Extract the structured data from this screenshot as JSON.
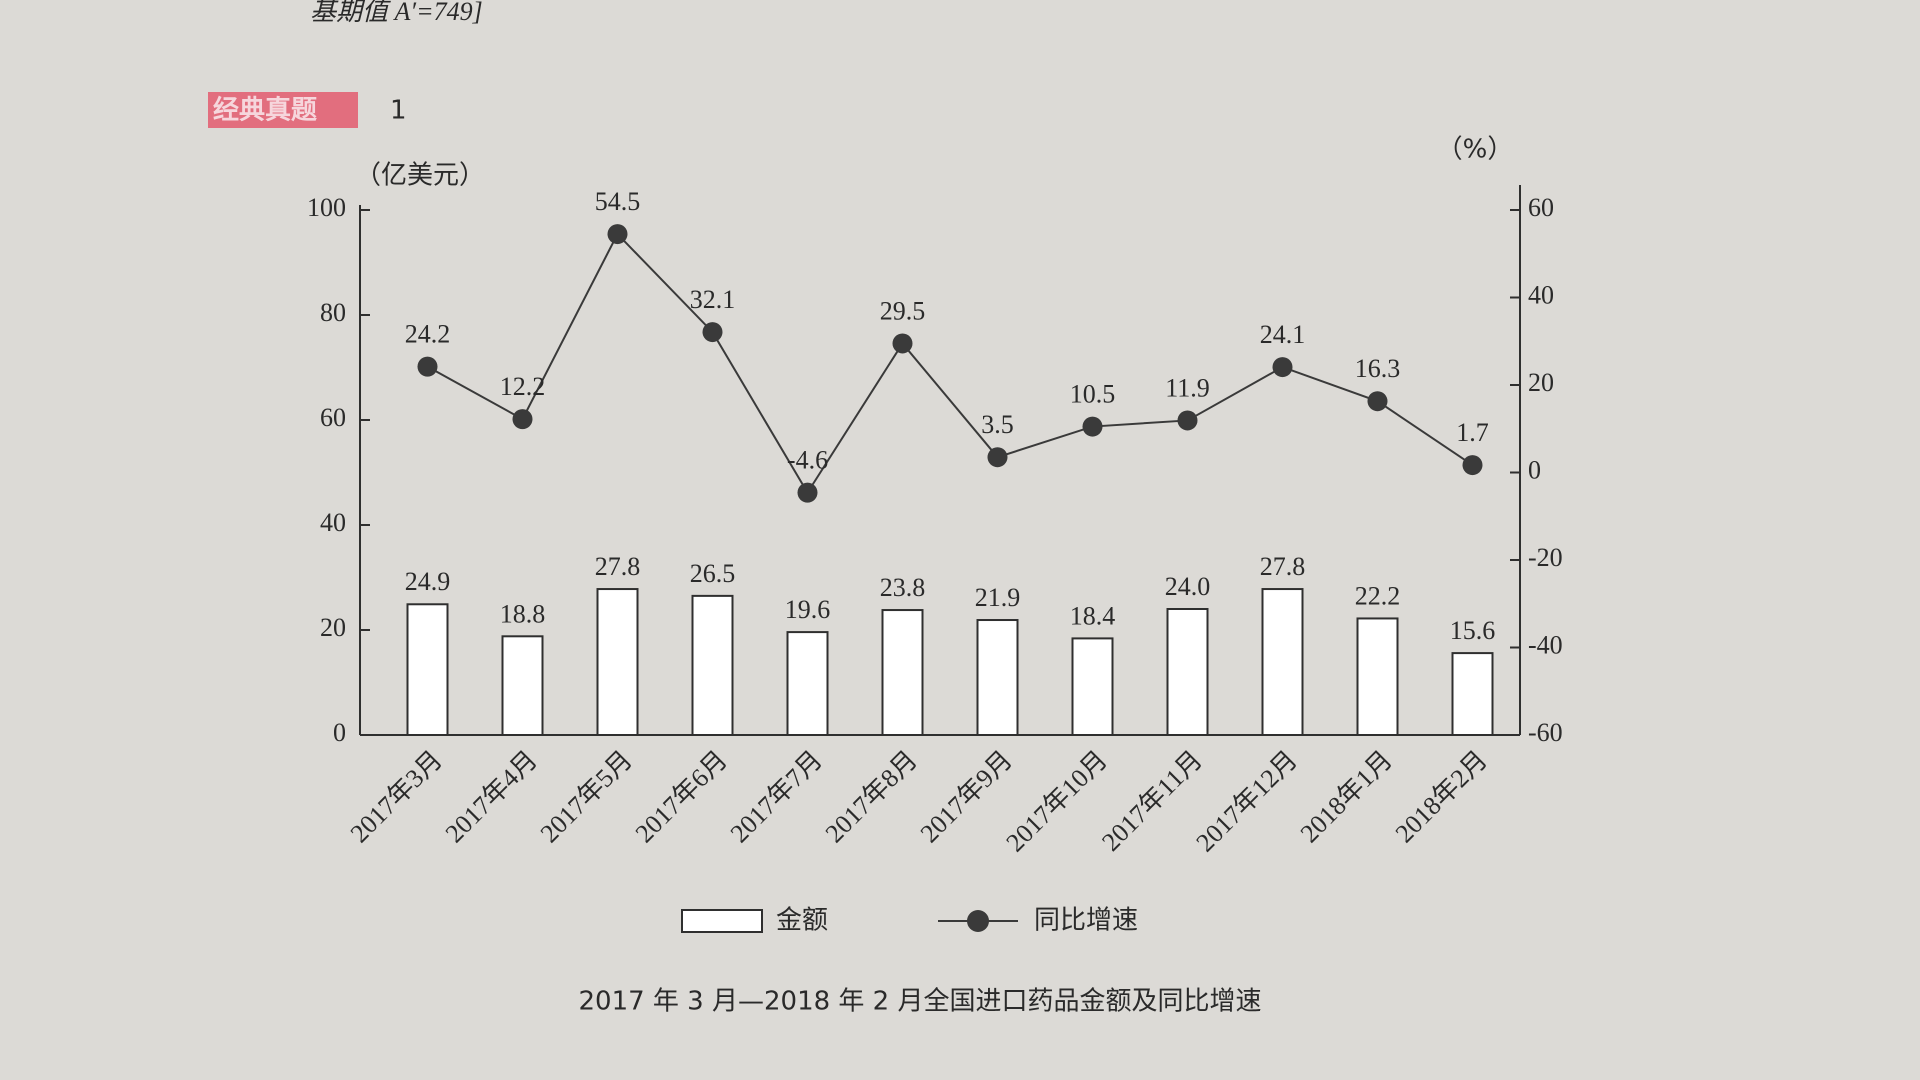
{
  "header": {
    "formula": "基期值 A′=749]",
    "tag": "经典真题",
    "tag_number": "1"
  },
  "chart_data": {
    "type": "bar",
    "title": "2017 年 3 月—2018 年 2 月全国进口药品金额及同比增速",
    "y_label": "（亿美元）",
    "y2_label": "（%）",
    "categories": [
      "2017年3月",
      "2017年4月",
      "2017年5月",
      "2017年6月",
      "2017年7月",
      "2017年8月",
      "2017年9月",
      "2017年10月",
      "2017年11月",
      "2017年12月",
      "2018年1月",
      "2018年2月"
    ],
    "series": [
      {
        "name": "金额",
        "color": "#ffffff",
        "values": [
          24.9,
          18.8,
          27.8,
          26.5,
          19.6,
          23.8,
          21.9,
          18.4,
          24.0,
          27.8,
          22.2,
          15.6
        ],
        "value_labels": [
          "24.9",
          "18.8",
          "27.8",
          "26.5",
          "19.6",
          "23.8",
          "21.9",
          "18.4",
          "24.0",
          "27.8",
          "22.2",
          "15.6"
        ]
      },
      {
        "name": "同比增速",
        "type": "line",
        "axis": "y2",
        "color": "#3a3a3a",
        "values": [
          24.2,
          12.2,
          54.5,
          32.1,
          -4.6,
          29.5,
          3.5,
          10.5,
          11.9,
          24.1,
          16.3,
          1.7
        ]
      }
    ],
    "ylim": [
      0,
      100
    ],
    "yticks": [
      0,
      20,
      40,
      60,
      80,
      100
    ],
    "y2lim": [
      -60,
      60
    ],
    "y2ticks": [
      -60,
      -40,
      -20,
      0,
      20,
      40,
      60
    ]
  }
}
